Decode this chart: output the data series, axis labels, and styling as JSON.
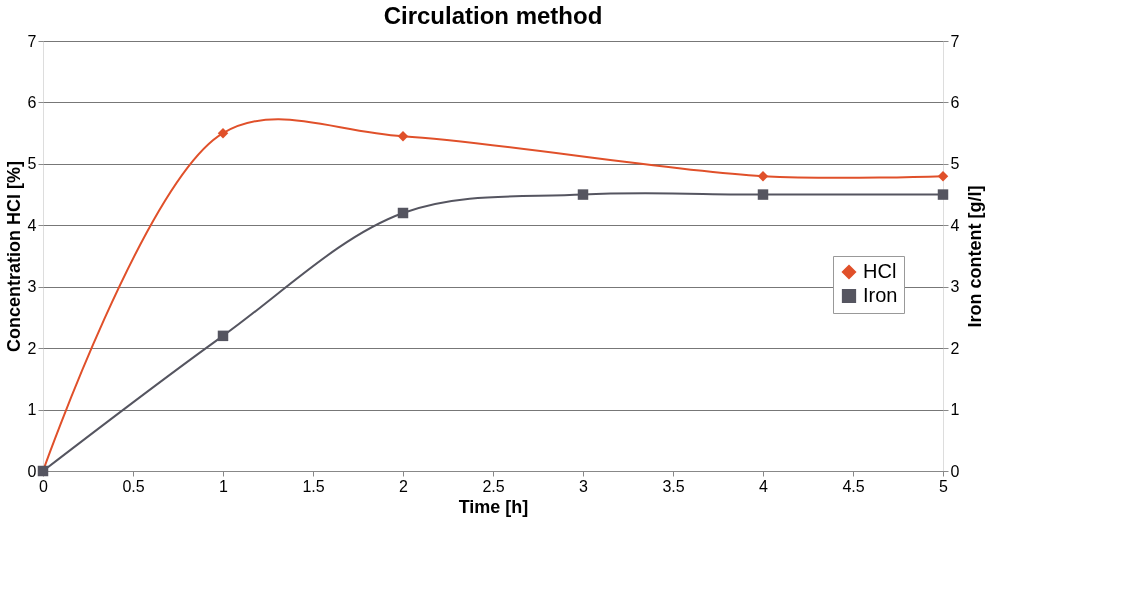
{
  "chart_data": {
    "type": "line",
    "title": "Circulation method",
    "xlabel": "Time [h]",
    "ylabel": "Concentration HCl [%]",
    "y2label": "Iron content [g/l]",
    "xlim": [
      0,
      5
    ],
    "xticks": [
      0,
      0.5,
      1,
      1.5,
      2,
      2.5,
      3,
      3.5,
      4,
      4.5,
      5
    ],
    "ylim": [
      0,
      7
    ],
    "yticks": [
      0,
      1,
      2,
      3,
      4,
      5,
      6,
      7
    ],
    "y2lim": [
      0,
      7
    ],
    "y2ticks": [
      0,
      1,
      2,
      3,
      4,
      5,
      6,
      7
    ],
    "grid": "y",
    "legend": "right",
    "series": [
      {
        "name": "HCl",
        "color": "#e0502a",
        "marker": "diamond",
        "x": [
          0,
          1,
          2,
          4,
          5
        ],
        "values": [
          0,
          5.5,
          5.45,
          4.8,
          4.8
        ]
      },
      {
        "name": "Iron",
        "color": "#555560",
        "marker": "square",
        "axis": "y2",
        "x": [
          0,
          1,
          2,
          3,
          4,
          5
        ],
        "values": [
          0,
          2.2,
          4.2,
          4.5,
          4.5,
          4.5
        ]
      }
    ]
  }
}
